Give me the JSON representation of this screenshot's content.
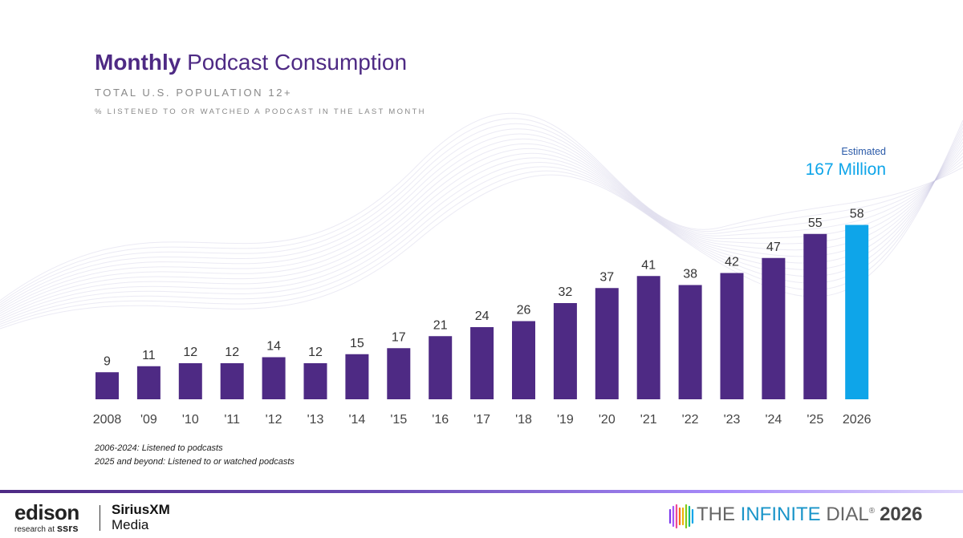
{
  "header": {
    "title_bold": "Monthly",
    "title_rest": " Podcast Consumption",
    "subtitle": "TOTAL U.S. POPULATION 12+",
    "subtitle2": "% LISTENED TO OR WATCHED A PODCAST IN THE LAST MONTH"
  },
  "estimate": {
    "label": "Estimated",
    "value": "167 Million"
  },
  "notes": {
    "line1": "2006-2024: Listened to podcasts",
    "line2": "2025 and beyond: Listened to or watched podcasts"
  },
  "footer": {
    "edison": "edison",
    "research_prefix": "research at ",
    "research_brand": "ssrs",
    "sirius": "SiriusXM",
    "media": "Media",
    "dial_the": "THE ",
    "dial_infinite": "INFINITE",
    "dial_rest": " DIAL",
    "dial_reg": "®",
    "dial_year": "2026"
  },
  "colors": {
    "bar": "#4e2a84",
    "highlight": "#0ea5e9",
    "title": "#4e2a84"
  },
  "chart_data": {
    "type": "bar",
    "categories": [
      "2008",
      "'09",
      "'10",
      "'11",
      "'12",
      "'13",
      "'14",
      "'15",
      "'16",
      "'17",
      "'18",
      "'19",
      "'20",
      "'21",
      "'22",
      "'23",
      "'24",
      "'25",
      "2026"
    ],
    "values": [
      9,
      11,
      12,
      12,
      14,
      12,
      15,
      17,
      21,
      24,
      26,
      32,
      37,
      41,
      38,
      42,
      47,
      55,
      58
    ],
    "highlight_index": 18,
    "data_labels": true,
    "ylim": [
      0,
      60
    ],
    "grid": false,
    "legend": "none"
  }
}
